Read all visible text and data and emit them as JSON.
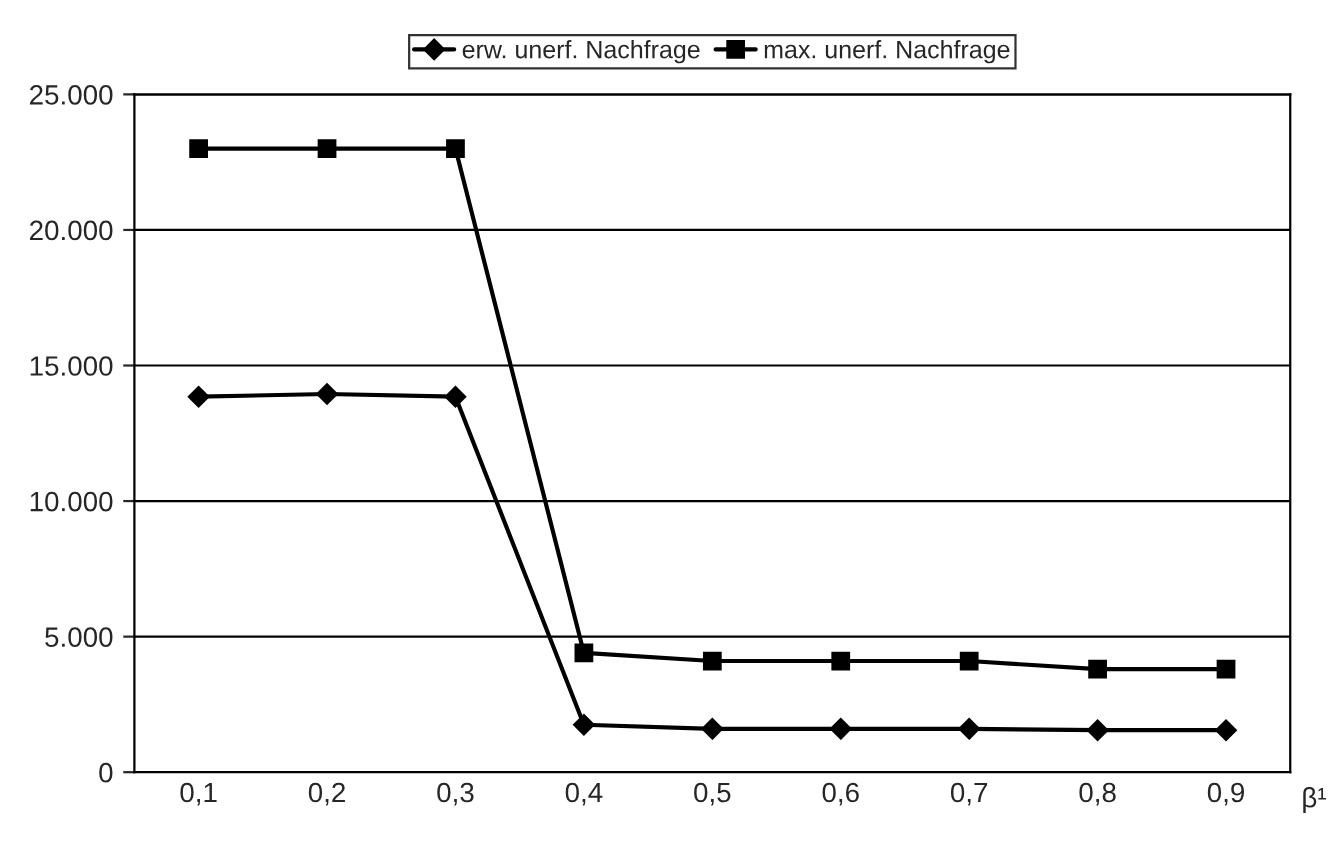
{
  "chart_data": {
    "type": "line",
    "xlabel": "β¹",
    "categories": [
      "0,1",
      "0,2",
      "0,3",
      "0,4",
      "0,5",
      "0,6",
      "0,7",
      "0,8",
      "0,9"
    ],
    "series": [
      {
        "name": "erw. unerf. Nachfrage",
        "color": "#000000",
        "marker": "diamond",
        "values": [
          13850,
          13950,
          13850,
          1750,
          1600,
          1600,
          1600,
          1550,
          1550
        ]
      },
      {
        "name": "max. unerf. Nachfrage",
        "color": "#000000",
        "marker": "square",
        "values": [
          23000,
          23000,
          23000,
          4400,
          4100,
          4100,
          4100,
          3800,
          3800
        ]
      }
    ],
    "ylim": [
      0,
      25000
    ],
    "yticks": [
      {
        "value": 0,
        "label": "0"
      },
      {
        "value": 5000,
        "label": "5.000"
      },
      {
        "value": 10000,
        "label": "10.000"
      },
      {
        "value": 15000,
        "label": "15.000"
      },
      {
        "value": 20000,
        "label": "20.000"
      },
      {
        "value": 25000,
        "label": "25.000"
      }
    ],
    "grid": "y",
    "legend": "top",
    "line_style": "solid"
  }
}
